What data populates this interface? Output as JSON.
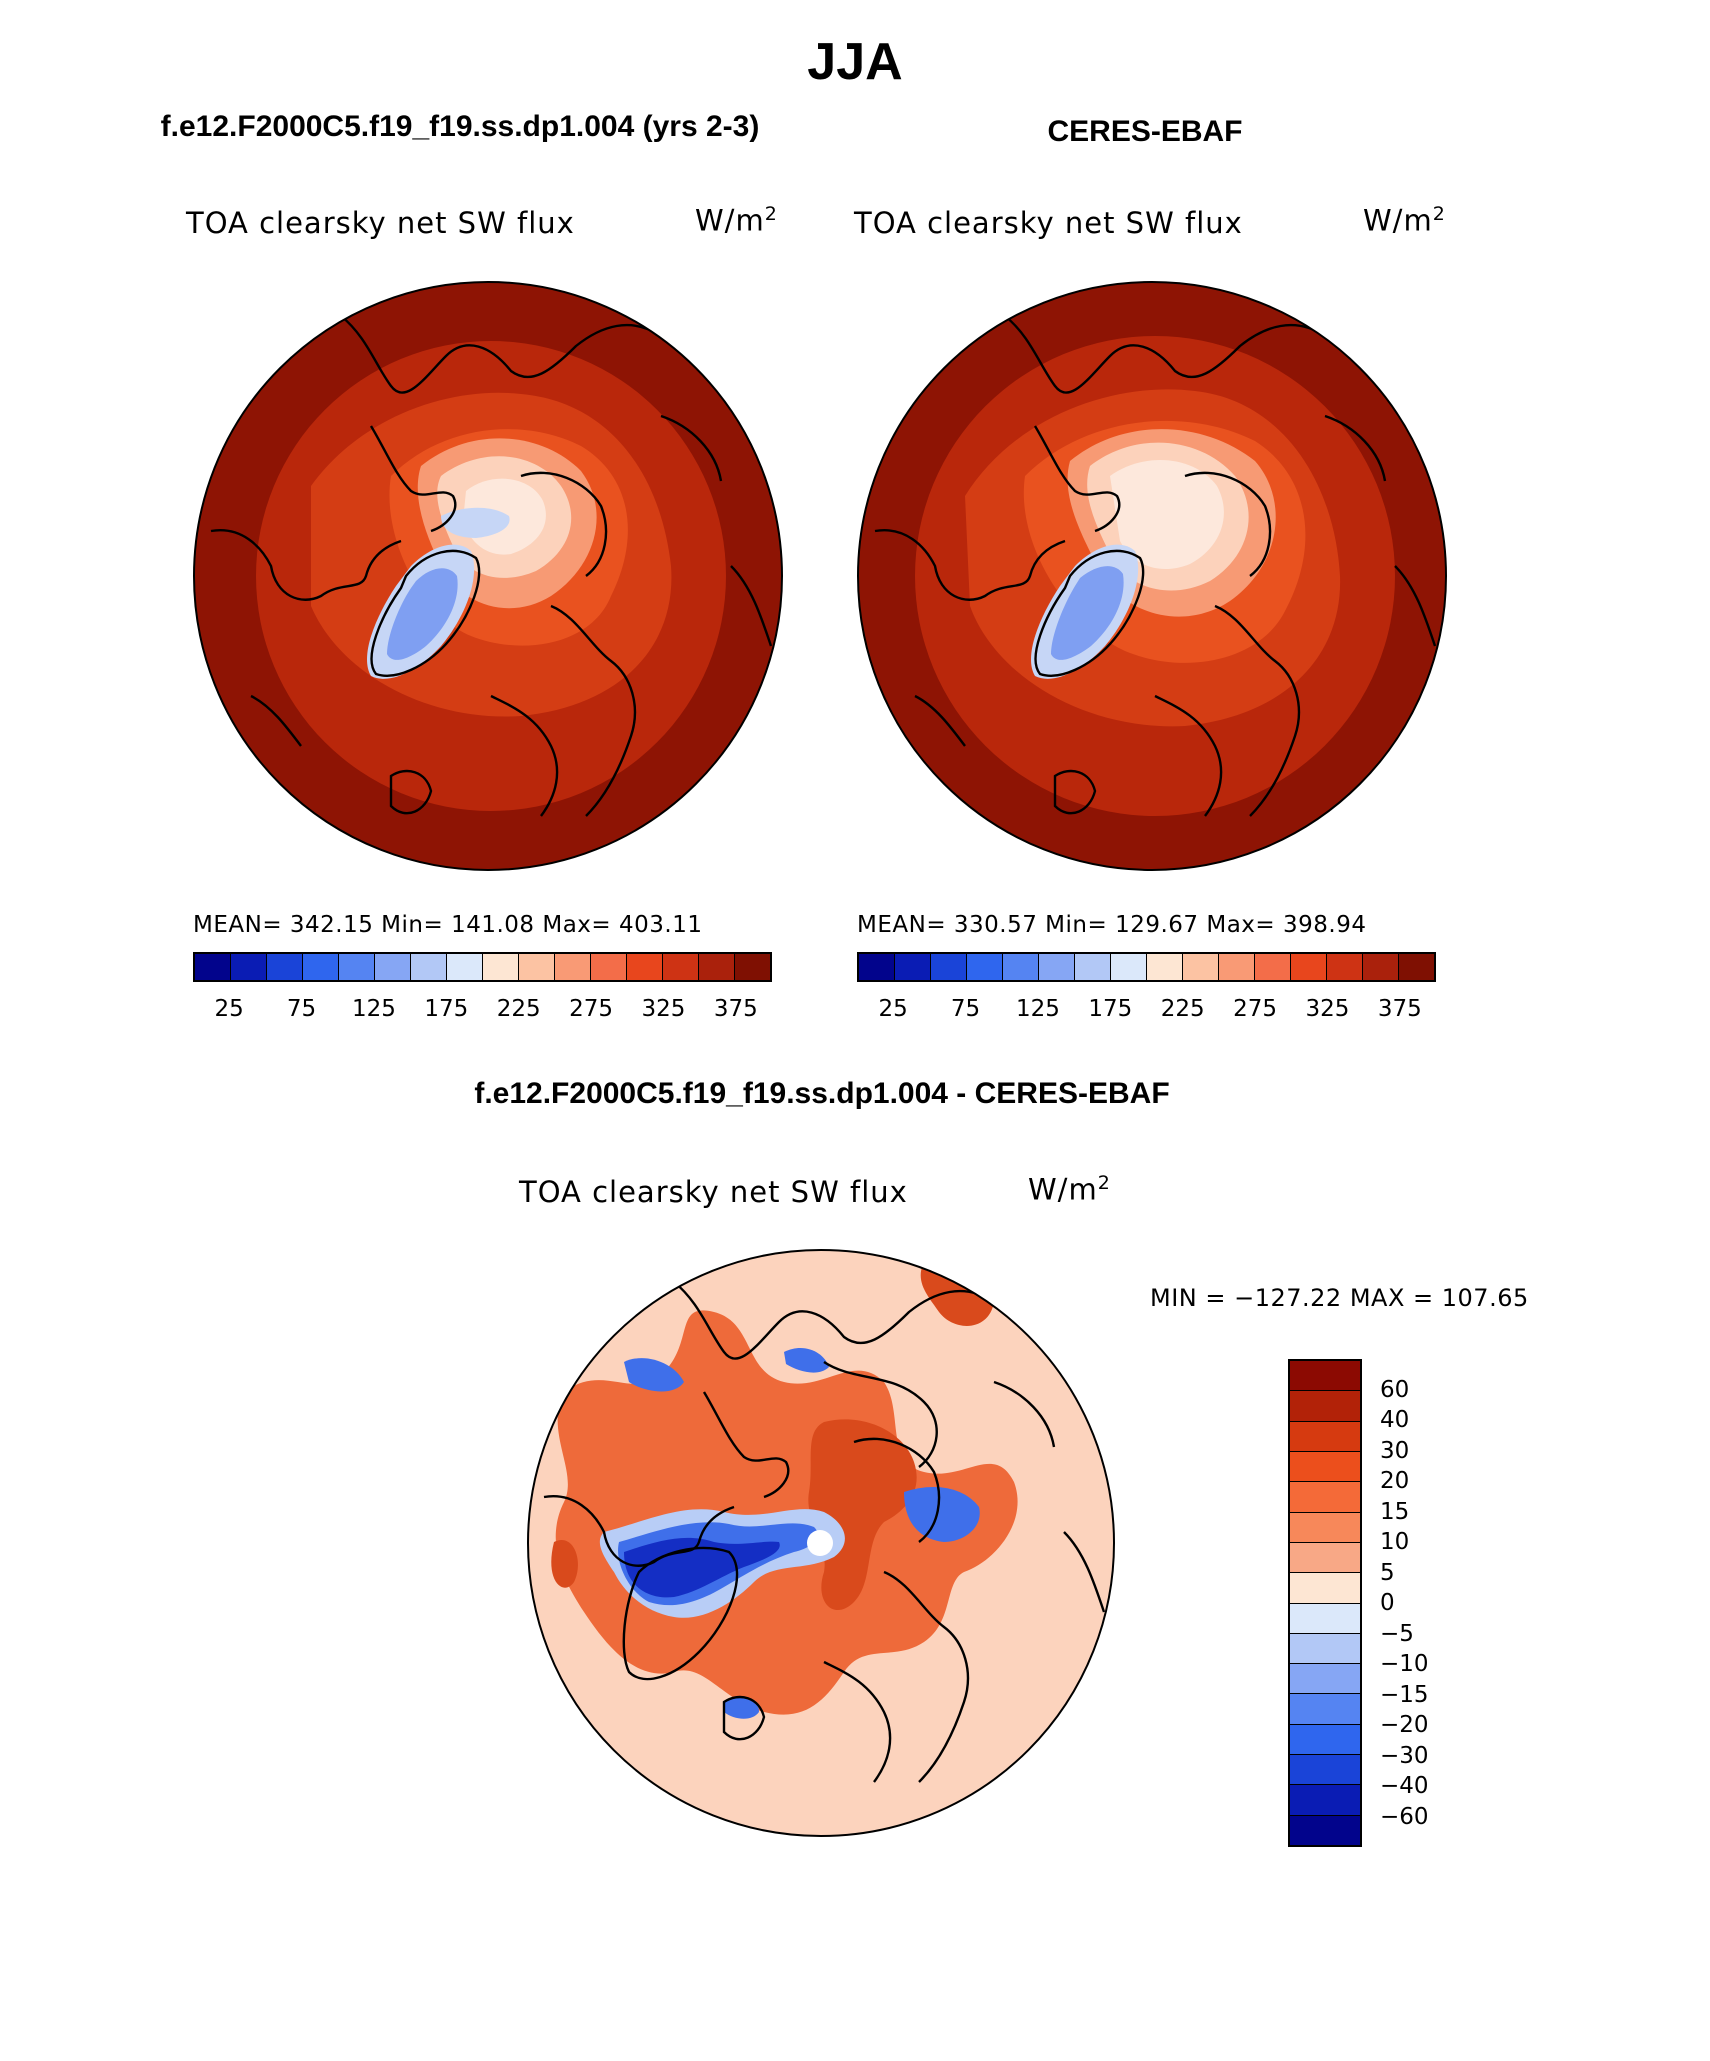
{
  "figure": {
    "season": "JJA",
    "model_title": "f.e12.F2000C5.f19_f19.ss.dp1.004 (yrs 2-3)",
    "obs_title": "CERES-EBAF",
    "diff_title": "f.e12.F2000C5.f19_f19.ss.dp1.004 - CERES-EBAF"
  },
  "panels": {
    "model": {
      "variable": "TOA clearsky net SW flux",
      "units_base": "W/m",
      "units_exp": "2",
      "stats": "MEAN= 342.15   Min= 141.08   Max= 403.11"
    },
    "obs": {
      "variable": "TOA clearsky net SW flux",
      "units_base": "W/m",
      "units_exp": "2",
      "stats": "MEAN= 330.57   Min= 129.67   Max= 398.94"
    },
    "diff": {
      "variable": "TOA clearsky net SW flux",
      "units_base": "W/m",
      "units_exp": "2",
      "stats": "MIN = −127.22 MAX = 107.65"
    }
  },
  "colorbars": {
    "abs_ticks": [
      "25",
      "75",
      "125",
      "175",
      "225",
      "275",
      "325",
      "375"
    ],
    "abs_colors": [
      "#02048c",
      "#0a1cb4",
      "#1a44d8",
      "#2f66ee",
      "#5584f2",
      "#86a6f4",
      "#b2c8f6",
      "#dbe8fa",
      "#fde6d3",
      "#fcc3a3",
      "#f99a75",
      "#f36d49",
      "#e8461d",
      "#ce3314",
      "#aa210c",
      "#7f1002"
    ],
    "diff_ticks": [
      "60",
      "40",
      "30",
      "20",
      "15",
      "10",
      "5",
      "0",
      "−5",
      "−10",
      "−15",
      "−20",
      "−30",
      "−40",
      "−60"
    ],
    "diff_colors": [
      "#8c0a02",
      "#b22208",
      "#d63a10",
      "#ec4f1c",
      "#f46a38",
      "#f7885a",
      "#f8a886",
      "#fde6d3",
      "#dbe8fa",
      "#b2c8f6",
      "#86a6f4",
      "#5584f2",
      "#2f66ee",
      "#1a44d8",
      "#0a1cb4",
      "#02048c"
    ]
  },
  "map_colors": {
    "ocean_far": "#8e1404",
    "ocean_mid": "#b9270b",
    "ocean_inner": "#d43d14",
    "sea_orange": "#e9521f",
    "arctic_light": "#f79a74",
    "arctic_pale": "#fcd2bb",
    "arctic_white": "#fde8dc",
    "greenland_pale": "#c6d6f6",
    "greenland_blue": "#7f9ff2",
    "diff_bg": "#fcd3bd",
    "diff_orange": "#ee6a3a",
    "diff_red": "#d94a1c",
    "diff_blue": "#3f6fea",
    "diff_navy": "#142ec4",
    "diff_lightblue": "#b8cdf6"
  }
}
